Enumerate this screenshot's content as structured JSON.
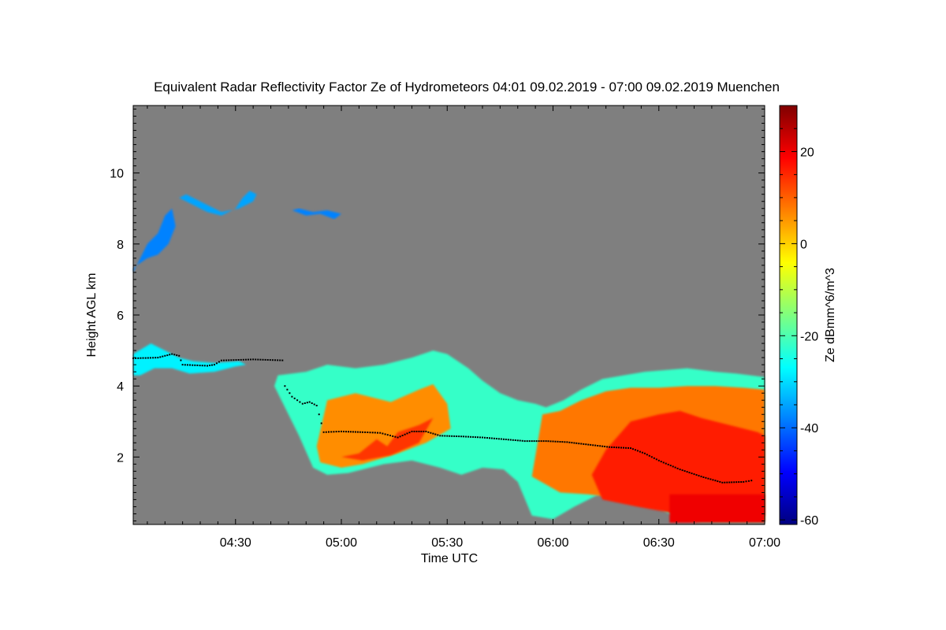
{
  "chart_data": {
    "type": "heatmap",
    "title": "Equivalent Radar Reflectivity Factor Ze of Hydrometeors   04:01 09.02.2019 - 07:00 09.02.2019 Muenchen",
    "xlabel": "Time UTC",
    "ylabel": "Height AGL km",
    "xlim_minutes": [
      241,
      420
    ],
    "ylim_km": [
      0.1,
      11.9
    ],
    "x_ticks": [
      {
        "minutes": 270,
        "label": "04:30"
      },
      {
        "minutes": 300,
        "label": "05:00"
      },
      {
        "minutes": 330,
        "label": "05:30"
      },
      {
        "minutes": 360,
        "label": "06:00"
      },
      {
        "minutes": 390,
        "label": "06:30"
      },
      {
        "minutes": 420,
        "label": "07:00"
      }
    ],
    "y_ticks": [
      {
        "value": 2,
        "label": "2"
      },
      {
        "value": 4,
        "label": "4"
      },
      {
        "value": 6,
        "label": "6"
      },
      {
        "value": 8,
        "label": "8"
      },
      {
        "value": 10,
        "label": "10"
      }
    ],
    "colorbar": {
      "label": "Ze dBmm^6/m^3",
      "range": [
        -61,
        30
      ],
      "ticks": [
        {
          "value": 20,
          "label": "20"
        },
        {
          "value": 0,
          "label": "0"
        },
        {
          "value": -20,
          "label": "-20"
        },
        {
          "value": -40,
          "label": "-40"
        },
        {
          "value": -60,
          "label": "-60"
        }
      ],
      "colormap": [
        "#00007f",
        "#0000ff",
        "#007fff",
        "#00ffff",
        "#7fff7f",
        "#ffff00",
        "#ff7f00",
        "#ff0000",
        "#7f0000"
      ]
    },
    "background_color": "#7f7f7f",
    "echo_regions": [
      {
        "name": "cirrus-left",
        "points": [
          [
            241,
            7.2
          ],
          [
            243,
            7.6
          ],
          [
            245,
            8.0
          ],
          [
            248,
            8.3
          ],
          [
            250,
            8.8
          ],
          [
            252,
            9.0
          ],
          [
            253,
            8.5
          ],
          [
            251,
            8.0
          ],
          [
            248,
            7.7
          ],
          [
            245,
            7.6
          ],
          [
            242,
            7.4
          ],
          [
            241,
            7.3
          ]
        ],
        "ze_dbz": -38
      },
      {
        "name": "cirrus-upper-a",
        "points": [
          [
            254,
            9.3
          ],
          [
            258,
            9.1
          ],
          [
            262,
            8.9
          ],
          [
            266,
            8.8
          ],
          [
            270,
            9.0
          ],
          [
            272,
            9.3
          ],
          [
            274,
            9.5
          ],
          [
            276,
            9.4
          ],
          [
            275,
            9.2
          ],
          [
            271,
            9.0
          ],
          [
            266,
            8.9
          ],
          [
            260,
            9.2
          ],
          [
            256,
            9.4
          ]
        ],
        "ze_dbz": -35
      },
      {
        "name": "cirrus-upper-b",
        "points": [
          [
            286,
            8.95
          ],
          [
            290,
            8.8
          ],
          [
            294,
            8.85
          ],
          [
            298,
            8.7
          ],
          [
            300,
            8.85
          ],
          [
            296,
            8.95
          ],
          [
            292,
            8.9
          ],
          [
            288,
            9.0
          ]
        ],
        "ze_dbz": -38
      },
      {
        "name": "upper-layer",
        "points": [
          [
            241,
            4.9
          ],
          [
            246,
            5.2
          ],
          [
            250,
            5.0
          ],
          [
            254,
            4.8
          ],
          [
            258,
            4.7
          ],
          [
            264,
            4.65
          ],
          [
            271,
            4.7
          ],
          [
            273,
            4.6
          ],
          [
            270,
            4.55
          ],
          [
            264,
            4.4
          ],
          [
            257,
            4.35
          ],
          [
            252,
            4.5
          ],
          [
            247,
            4.5
          ],
          [
            243,
            4.3
          ],
          [
            241,
            4.3
          ]
        ],
        "ze_dbz": -28
      },
      {
        "name": "main-stratiform",
        "points": [
          [
            282,
            4.3
          ],
          [
            286,
            4.35
          ],
          [
            290,
            4.4
          ],
          [
            296,
            4.6
          ],
          [
            304,
            4.5
          ],
          [
            312,
            4.6
          ],
          [
            320,
            4.8
          ],
          [
            326,
            5.0
          ],
          [
            330,
            4.9
          ],
          [
            336,
            4.5
          ],
          [
            340,
            4.15
          ],
          [
            345,
            3.8
          ],
          [
            350,
            3.6
          ],
          [
            355,
            3.5
          ],
          [
            358,
            3.4
          ],
          [
            363,
            3.6
          ],
          [
            368,
            3.9
          ],
          [
            374,
            4.2
          ],
          [
            380,
            4.3
          ],
          [
            386,
            4.4
          ],
          [
            392,
            4.45
          ],
          [
            398,
            4.5
          ],
          [
            406,
            4.4
          ],
          [
            412,
            4.35
          ],
          [
            420,
            4.25
          ],
          [
            420,
            0.15
          ],
          [
            402,
            0.15
          ],
          [
            395,
            0.3
          ],
          [
            390,
            0.55
          ],
          [
            384,
            0.85
          ],
          [
            378,
            1.1
          ],
          [
            372,
            0.9
          ],
          [
            366,
            0.6
          ],
          [
            360,
            0.25
          ],
          [
            354,
            0.35
          ],
          [
            350,
            1.3
          ],
          [
            346,
            1.65
          ],
          [
            340,
            1.7
          ],
          [
            334,
            1.5
          ],
          [
            328,
            1.7
          ],
          [
            320,
            1.9
          ],
          [
            312,
            1.8
          ],
          [
            302,
            1.55
          ],
          [
            296,
            1.5
          ],
          [
            292,
            1.7
          ],
          [
            288,
            2.6
          ],
          [
            284,
            3.4
          ],
          [
            281,
            4.0
          ]
        ],
        "ze_dbz": -22
      },
      {
        "name": "orange-core-1",
        "points": [
          [
            293,
            2.3
          ],
          [
            296,
            3.6
          ],
          [
            304,
            3.8
          ],
          [
            314,
            3.55
          ],
          [
            322,
            3.9
          ],
          [
            326,
            4.05
          ],
          [
            330,
            3.5
          ],
          [
            331,
            2.8
          ],
          [
            324,
            2.4
          ],
          [
            316,
            2.1
          ],
          [
            306,
            1.8
          ],
          [
            300,
            1.7
          ],
          [
            294,
            1.85
          ]
        ],
        "ze_dbz": 6
      },
      {
        "name": "orange-core-2",
        "points": [
          [
            354,
            1.45
          ],
          [
            357,
            3.2
          ],
          [
            362,
            3.3
          ],
          [
            368,
            3.6
          ],
          [
            375,
            3.85
          ],
          [
            382,
            3.95
          ],
          [
            390,
            3.95
          ],
          [
            398,
            4.0
          ],
          [
            406,
            4.0
          ],
          [
            414,
            3.95
          ],
          [
            420,
            3.9
          ],
          [
            420,
            0.2
          ],
          [
            406,
            0.2
          ],
          [
            398,
            0.25
          ],
          [
            392,
            0.55
          ],
          [
            386,
            0.75
          ],
          [
            378,
            0.85
          ],
          [
            370,
            0.95
          ],
          [
            362,
            1.0
          ]
        ],
        "ze_dbz": 8
      },
      {
        "name": "red-core-1",
        "points": [
          [
            300,
            2.0
          ],
          [
            305,
            2.1
          ],
          [
            310,
            2.5
          ],
          [
            313,
            2.3
          ],
          [
            316,
            2.7
          ],
          [
            322,
            2.9
          ],
          [
            326,
            3.1
          ],
          [
            322,
            2.4
          ],
          [
            314,
            2.05
          ],
          [
            306,
            1.9
          ]
        ],
        "ze_dbz": 14
      },
      {
        "name": "red-core-2",
        "points": [
          [
            371,
            1.5
          ],
          [
            375,
            2.2
          ],
          [
            382,
            3.0
          ],
          [
            390,
            3.2
          ],
          [
            396,
            3.3
          ],
          [
            402,
            3.1
          ],
          [
            410,
            2.9
          ],
          [
            418,
            2.7
          ],
          [
            420,
            2.6
          ],
          [
            420,
            0.35
          ],
          [
            406,
            0.35
          ],
          [
            395,
            0.4
          ],
          [
            384,
            0.6
          ],
          [
            374,
            0.8
          ]
        ],
        "ze_dbz": 16
      },
      {
        "name": "rain-layer-red",
        "points": [
          [
            393,
            0.15
          ],
          [
            420,
            0.15
          ],
          [
            420,
            0.95
          ],
          [
            393,
            0.95
          ]
        ],
        "ze_dbz": 20
      }
    ],
    "line_series": [
      {
        "name": "cloud-base-upper",
        "points": [
          [
            241,
            4.78
          ],
          [
            248,
            4.8
          ],
          [
            252,
            4.9
          ],
          [
            254,
            4.85
          ],
          [
            255,
            4.6
          ],
          [
            262,
            4.57
          ],
          [
            264,
            4.6
          ],
          [
            266,
            4.72
          ],
          [
            275,
            4.75
          ],
          [
            284,
            4.72
          ]
        ]
      },
      {
        "name": "cloud-base-main",
        "points": [
          [
            284,
            4.0
          ],
          [
            286,
            3.7
          ],
          [
            289,
            3.5
          ],
          [
            291,
            3.55
          ],
          [
            293,
            3.45
          ],
          [
            295,
            2.7
          ],
          [
            300,
            2.72
          ],
          [
            306,
            2.7
          ],
          [
            311,
            2.68
          ],
          [
            316,
            2.55
          ],
          [
            320,
            2.72
          ],
          [
            324,
            2.72
          ],
          [
            328,
            2.6
          ],
          [
            334,
            2.58
          ],
          [
            340,
            2.55
          ],
          [
            346,
            2.5
          ],
          [
            352,
            2.45
          ],
          [
            358,
            2.45
          ],
          [
            364,
            2.42
          ],
          [
            370,
            2.35
          ],
          [
            376,
            2.28
          ],
          [
            382,
            2.25
          ],
          [
            386,
            2.1
          ],
          [
            390,
            1.9
          ],
          [
            396,
            1.65
          ],
          [
            402,
            1.45
          ],
          [
            408,
            1.28
          ],
          [
            414,
            1.3
          ],
          [
            417,
            1.35
          ]
        ]
      }
    ]
  }
}
